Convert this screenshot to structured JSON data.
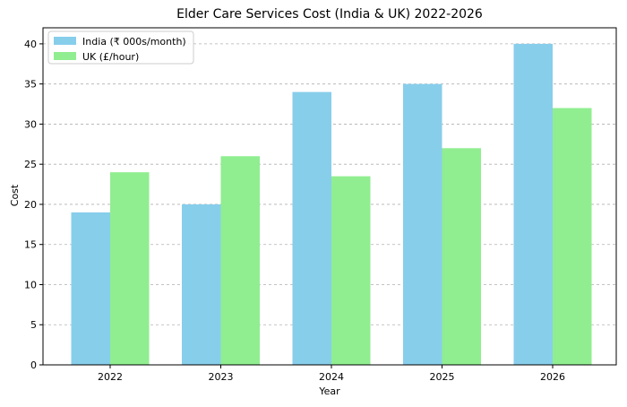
{
  "chart_data": {
    "type": "bar",
    "title": "Elder Care Services Cost (India & UK) 2022-2026",
    "xlabel": "Year",
    "ylabel": "Cost",
    "categories": [
      "2022",
      "2023",
      "2024",
      "2025",
      "2026"
    ],
    "series": [
      {
        "name": "India (₹ 000s/month)",
        "values": [
          19,
          20,
          34,
          35,
          40
        ],
        "color": "#87CEEB"
      },
      {
        "name": "UK (£/hour)",
        "values": [
          24,
          26,
          23.5,
          27,
          32
        ],
        "color": "#90EE90"
      }
    ],
    "ylim": [
      0,
      42
    ],
    "yticks": [
      0,
      5,
      10,
      15,
      20,
      25,
      30,
      35,
      40
    ],
    "grid": "y-dashed",
    "legend_position": "upper-left"
  }
}
